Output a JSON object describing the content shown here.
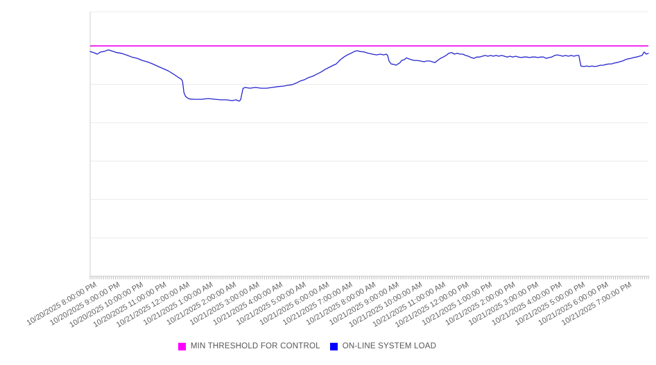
{
  "chart_data": {
    "type": "line",
    "title": "",
    "xlabel": "",
    "ylabel": "",
    "grid": "horizontal",
    "legend_position": "bottom-center",
    "x_axis": {
      "unit": "datetime (hourly labels, 5-minute minor ticks)",
      "label_rotation_deg": -30,
      "minor_tick_count": 288,
      "labels": [
        "10/20/2025 8:00:00 PM",
        "10/20/2025 9:00:00 PM",
        "10/20/2025 10:00:00 PM",
        "10/20/2025 11:00:00 PM",
        "10/21/2025 12:00:00 AM",
        "10/21/2025 1:00:00 AM",
        "10/21/2025 2:00:00 AM",
        "10/21/2025 3:00:00 AM",
        "10/21/2025 4:00:00 AM",
        "10/21/2025 5:00:00 AM",
        "10/21/2025 6:00:00 AM",
        "10/21/2025 7:00:00 AM",
        "10/21/2025 8:00:00 AM",
        "10/21/2025 9:00:00 AM",
        "10/21/2025 10:00:00 AM",
        "10/21/2025 11:00:00 AM",
        "10/21/2025 12:00:00 PM",
        "10/21/2025 1:00:00 PM",
        "10/21/2025 2:00:00 PM",
        "10/21/2025 3:00:00 PM",
        "10/21/2025 4:00:00 PM",
        "10/21/2025 5:00:00 PM",
        "10/21/2025 6:00:00 PM",
        "10/21/2025 7:00:00 PM"
      ]
    },
    "y_axis": {
      "tick_labels_visible": false,
      "gridline_count": 7,
      "range_normalized_pct": [
        0,
        100
      ]
    },
    "note": "y-axis has no visible tick labels; series values are normalized percent of plot height (0 = bottom axis, 100 = plot top)",
    "series": [
      {
        "name": "MIN THRESHOLD FOR CONTROL",
        "kind": "constant-threshold-line",
        "color": "#ee00ee",
        "legend_color": "#ff00ff",
        "value": 87.1
      },
      {
        "name": "ON-LINE SYSTEM LOAD",
        "kind": "line",
        "color": "#2424cd",
        "legend_color": "#0000ff",
        "points_t_hours_v_pct": [
          [
            0.0,
            85.0
          ],
          [
            0.18,
            84.5
          ],
          [
            0.3,
            84.0
          ],
          [
            0.45,
            84.8
          ],
          [
            0.6,
            85.0
          ],
          [
            0.78,
            85.6
          ],
          [
            0.96,
            85.1
          ],
          [
            1.14,
            84.6
          ],
          [
            1.34,
            84.3
          ],
          [
            1.55,
            83.7
          ],
          [
            1.79,
            82.9
          ],
          [
            2.03,
            82.4
          ],
          [
            2.24,
            81.6
          ],
          [
            2.45,
            81.1
          ],
          [
            2.69,
            80.3
          ],
          [
            2.93,
            79.3
          ],
          [
            3.14,
            78.5
          ],
          [
            3.35,
            77.7
          ],
          [
            3.59,
            76.4
          ],
          [
            3.77,
            75.3
          ],
          [
            3.92,
            74.5
          ],
          [
            3.97,
            73.8
          ],
          [
            4.03,
            69.5
          ],
          [
            4.1,
            68.0
          ],
          [
            4.2,
            67.3
          ],
          [
            4.3,
            67.0
          ],
          [
            4.48,
            66.9
          ],
          [
            4.78,
            66.9
          ],
          [
            5.08,
            67.2
          ],
          [
            5.38,
            66.9
          ],
          [
            5.62,
            66.7
          ],
          [
            5.86,
            66.7
          ],
          [
            6.1,
            66.4
          ],
          [
            6.28,
            66.7
          ],
          [
            6.4,
            66.2
          ],
          [
            6.47,
            66.7
          ],
          [
            6.57,
            71.0
          ],
          [
            6.66,
            71.4
          ],
          [
            6.87,
            71.1
          ],
          [
            7.11,
            71.4
          ],
          [
            7.35,
            71.1
          ],
          [
            7.59,
            71.1
          ],
          [
            7.83,
            71.4
          ],
          [
            8.07,
            71.7
          ],
          [
            8.31,
            71.9
          ],
          [
            8.49,
            72.2
          ],
          [
            8.67,
            72.4
          ],
          [
            8.85,
            73.0
          ],
          [
            9.03,
            73.8
          ],
          [
            9.21,
            74.3
          ],
          [
            9.38,
            75.1
          ],
          [
            9.56,
            75.6
          ],
          [
            9.74,
            76.4
          ],
          [
            9.92,
            77.2
          ],
          [
            10.1,
            78.2
          ],
          [
            10.28,
            79.0
          ],
          [
            10.46,
            79.8
          ],
          [
            10.58,
            80.3
          ],
          [
            10.76,
            81.9
          ],
          [
            10.91,
            82.9
          ],
          [
            11.06,
            83.7
          ],
          [
            11.21,
            84.3
          ],
          [
            11.36,
            85.0
          ],
          [
            11.48,
            85.3
          ],
          [
            11.6,
            85.0
          ],
          [
            11.78,
            84.8
          ],
          [
            11.96,
            84.3
          ],
          [
            12.13,
            84.0
          ],
          [
            12.31,
            83.7
          ],
          [
            12.49,
            84.0
          ],
          [
            12.61,
            83.7
          ],
          [
            12.73,
            84.0
          ],
          [
            12.79,
            83.5
          ],
          [
            12.85,
            81.4
          ],
          [
            12.94,
            80.3
          ],
          [
            13.06,
            80.1
          ],
          [
            13.15,
            79.8
          ],
          [
            13.24,
            80.3
          ],
          [
            13.33,
            80.8
          ],
          [
            13.39,
            81.6
          ],
          [
            13.51,
            81.9
          ],
          [
            13.6,
            82.6
          ],
          [
            13.69,
            82.2
          ],
          [
            13.81,
            81.9
          ],
          [
            13.93,
            81.6
          ],
          [
            14.05,
            81.6
          ],
          [
            14.2,
            81.4
          ],
          [
            14.35,
            81.1
          ],
          [
            14.47,
            81.4
          ],
          [
            14.59,
            81.4
          ],
          [
            14.71,
            81.1
          ],
          [
            14.82,
            80.8
          ],
          [
            14.94,
            81.6
          ],
          [
            15.06,
            82.4
          ],
          [
            15.18,
            82.9
          ],
          [
            15.3,
            83.5
          ],
          [
            15.42,
            84.3
          ],
          [
            15.54,
            84.6
          ],
          [
            15.66,
            84.0
          ],
          [
            15.78,
            84.3
          ],
          [
            15.9,
            84.0
          ],
          [
            16.02,
            84.0
          ],
          [
            16.14,
            83.5
          ],
          [
            16.26,
            83.2
          ],
          [
            16.38,
            82.7
          ],
          [
            16.5,
            82.4
          ],
          [
            16.62,
            82.9
          ],
          [
            16.74,
            82.9
          ],
          [
            16.86,
            83.2
          ],
          [
            16.98,
            83.5
          ],
          [
            17.1,
            83.2
          ],
          [
            17.22,
            83.5
          ],
          [
            17.33,
            83.2
          ],
          [
            17.45,
            83.5
          ],
          [
            17.57,
            83.2
          ],
          [
            17.69,
            83.5
          ],
          [
            17.81,
            83.2
          ],
          [
            17.93,
            82.9
          ],
          [
            18.05,
            83.2
          ],
          [
            18.17,
            82.9
          ],
          [
            18.29,
            83.2
          ],
          [
            18.41,
            82.9
          ],
          [
            18.53,
            82.7
          ],
          [
            18.65,
            82.9
          ],
          [
            18.77,
            82.9
          ],
          [
            18.89,
            82.7
          ],
          [
            19.01,
            82.9
          ],
          [
            19.13,
            82.9
          ],
          [
            19.25,
            82.7
          ],
          [
            19.37,
            82.9
          ],
          [
            19.49,
            82.9
          ],
          [
            19.61,
            82.4
          ],
          [
            19.73,
            82.7
          ],
          [
            19.85,
            82.9
          ],
          [
            19.97,
            83.5
          ],
          [
            20.08,
            83.7
          ],
          [
            20.2,
            83.5
          ],
          [
            20.32,
            83.2
          ],
          [
            20.44,
            83.5
          ],
          [
            20.56,
            83.2
          ],
          [
            20.68,
            83.5
          ],
          [
            20.8,
            83.2
          ],
          [
            20.92,
            83.5
          ],
          [
            21.01,
            83.5
          ],
          [
            21.1,
            79.5
          ],
          [
            21.22,
            79.3
          ],
          [
            21.34,
            79.5
          ],
          [
            21.46,
            79.3
          ],
          [
            21.58,
            79.5
          ],
          [
            21.7,
            79.3
          ],
          [
            21.82,
            79.5
          ],
          [
            21.94,
            79.8
          ],
          [
            22.06,
            79.8
          ],
          [
            22.18,
            80.1
          ],
          [
            22.3,
            80.3
          ],
          [
            22.42,
            80.3
          ],
          [
            22.53,
            80.6
          ],
          [
            22.65,
            80.8
          ],
          [
            22.77,
            81.1
          ],
          [
            22.89,
            81.4
          ],
          [
            23.01,
            81.9
          ],
          [
            23.13,
            82.2
          ],
          [
            23.25,
            82.4
          ],
          [
            23.37,
            82.7
          ],
          [
            23.49,
            82.9
          ],
          [
            23.61,
            83.2
          ],
          [
            23.73,
            83.5
          ],
          [
            23.82,
            84.8
          ],
          [
            23.91,
            84.0
          ],
          [
            24.0,
            84.3
          ]
        ]
      }
    ],
    "colors": {
      "gridline": "#ebebeb",
      "axis_line": "#cfcfcf",
      "minor_tick": "#b0b0b0",
      "axis_label_text": "#606060",
      "legend_text": "#565656",
      "background": "#ffffff"
    }
  },
  "legend": {
    "items": [
      {
        "label": "MIN THRESHOLD FOR CONTROL",
        "swatch_color": "#ff00ff"
      },
      {
        "label": "ON-LINE SYSTEM LOAD",
        "swatch_color": "#0000ff"
      }
    ]
  }
}
